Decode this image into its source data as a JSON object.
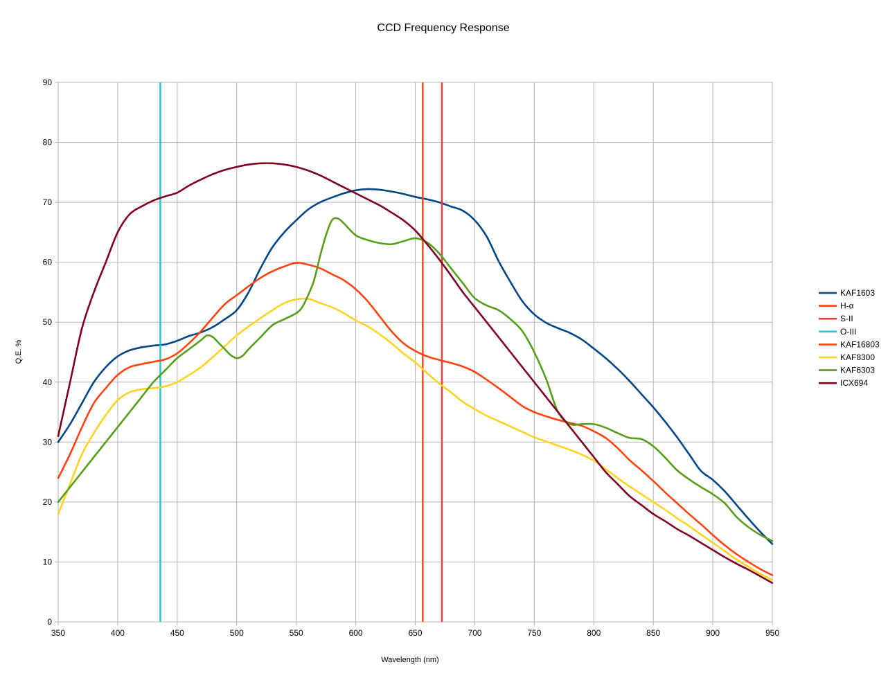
{
  "chart_data": {
    "type": "line",
    "title": "CCD Frequency Response",
    "xlabel": "Wavelength (nm)",
    "ylabel": "Q.E. %",
    "xlim": [
      350,
      950
    ],
    "ylim": [
      0,
      90
    ],
    "x_ticks": [
      350,
      400,
      450,
      500,
      550,
      600,
      650,
      700,
      750,
      800,
      850,
      900,
      950
    ],
    "y_ticks": [
      0,
      10,
      20,
      30,
      40,
      50,
      60,
      70,
      80,
      90
    ],
    "grid": true,
    "legend_position": "right",
    "series": [
      {
        "name": "KAF1603",
        "color": "#004586",
        "kind": "curve",
        "points": [
          [
            350,
            30
          ],
          [
            360,
            33
          ],
          [
            370,
            36.5
          ],
          [
            380,
            40
          ],
          [
            390,
            42.5
          ],
          [
            400,
            44.3
          ],
          [
            410,
            45.3
          ],
          [
            420,
            45.8
          ],
          [
            430,
            46.1
          ],
          [
            440,
            46.3
          ],
          [
            450,
            46.9
          ],
          [
            460,
            47.7
          ],
          [
            470,
            48.3
          ],
          [
            480,
            49.2
          ],
          [
            490,
            50.5
          ],
          [
            500,
            52
          ],
          [
            510,
            55
          ],
          [
            520,
            59
          ],
          [
            530,
            62.5
          ],
          [
            540,
            65
          ],
          [
            550,
            67
          ],
          [
            560,
            68.8
          ],
          [
            570,
            70
          ],
          [
            580,
            70.8
          ],
          [
            590,
            71.5
          ],
          [
            600,
            72
          ],
          [
            610,
            72.2
          ],
          [
            620,
            72.1
          ],
          [
            630,
            71.8
          ],
          [
            640,
            71.4
          ],
          [
            650,
            70.9
          ],
          [
            660,
            70.5
          ],
          [
            670,
            70
          ],
          [
            680,
            69.3
          ],
          [
            690,
            68.6
          ],
          [
            700,
            67
          ],
          [
            710,
            64.3
          ],
          [
            720,
            60.2
          ],
          [
            730,
            56.7
          ],
          [
            740,
            53.5
          ],
          [
            750,
            51.3
          ],
          [
            760,
            49.9
          ],
          [
            770,
            49
          ],
          [
            780,
            48.2
          ],
          [
            790,
            47.1
          ],
          [
            800,
            45.6
          ],
          [
            810,
            44
          ],
          [
            820,
            42.2
          ],
          [
            830,
            40.2
          ],
          [
            840,
            38
          ],
          [
            850,
            35.8
          ],
          [
            860,
            33.4
          ],
          [
            870,
            30.8
          ],
          [
            880,
            28
          ],
          [
            890,
            25.2
          ],
          [
            900,
            23.7
          ],
          [
            910,
            21.8
          ],
          [
            920,
            19.5
          ],
          [
            930,
            17.2
          ],
          [
            940,
            15
          ],
          [
            950,
            13
          ]
        ]
      },
      {
        "name": "H-α",
        "color": "#ff420e",
        "kind": "vline",
        "x": 656.3
      },
      {
        "name": "S-II",
        "color": "#ef3b36",
        "kind": "vline",
        "x": 672.4
      },
      {
        "name": "O-III",
        "color": "#1ec8cb",
        "kind": "vline",
        "x": 435.8
      },
      {
        "name": "KAF16803",
        "color": "#ff420e",
        "kind": "curve",
        "points": [
          [
            350,
            24
          ],
          [
            360,
            28
          ],
          [
            370,
            32.5
          ],
          [
            380,
            36.5
          ],
          [
            390,
            39
          ],
          [
            400,
            41.2
          ],
          [
            410,
            42.5
          ],
          [
            420,
            43
          ],
          [
            430,
            43.4
          ],
          [
            440,
            43.8
          ],
          [
            450,
            44.8
          ],
          [
            460,
            46.5
          ],
          [
            470,
            48.5
          ],
          [
            480,
            50.8
          ],
          [
            490,
            53
          ],
          [
            500,
            54.5
          ],
          [
            510,
            56
          ],
          [
            520,
            57.4
          ],
          [
            530,
            58.5
          ],
          [
            540,
            59.3
          ],
          [
            550,
            59.9
          ],
          [
            560,
            59.6
          ],
          [
            570,
            59
          ],
          [
            580,
            58
          ],
          [
            590,
            57
          ],
          [
            600,
            55.5
          ],
          [
            610,
            53.5
          ],
          [
            620,
            51
          ],
          [
            630,
            48.5
          ],
          [
            640,
            46.5
          ],
          [
            650,
            45.2
          ],
          [
            660,
            44.3
          ],
          [
            670,
            43.7
          ],
          [
            680,
            43.2
          ],
          [
            690,
            42.6
          ],
          [
            700,
            41.7
          ],
          [
            710,
            40.4
          ],
          [
            720,
            39
          ],
          [
            730,
            37.5
          ],
          [
            740,
            36
          ],
          [
            750,
            35
          ],
          [
            760,
            34.3
          ],
          [
            770,
            33.7
          ],
          [
            780,
            33.2
          ],
          [
            790,
            32.7
          ],
          [
            800,
            31.8
          ],
          [
            810,
            30.7
          ],
          [
            820,
            29
          ],
          [
            830,
            27
          ],
          [
            840,
            25.3
          ],
          [
            850,
            23.5
          ],
          [
            860,
            21.6
          ],
          [
            870,
            19.8
          ],
          [
            880,
            18
          ],
          [
            890,
            16.3
          ],
          [
            900,
            14.5
          ],
          [
            910,
            12.8
          ],
          [
            920,
            11.3
          ],
          [
            930,
            10
          ],
          [
            940,
            8.8
          ],
          [
            950,
            7.8
          ]
        ]
      },
      {
        "name": "KAF8300",
        "color": "#ffd320",
        "kind": "curve",
        "points": [
          [
            350,
            18
          ],
          [
            360,
            23
          ],
          [
            370,
            28
          ],
          [
            380,
            31.5
          ],
          [
            390,
            34.5
          ],
          [
            400,
            37
          ],
          [
            410,
            38.3
          ],
          [
            420,
            38.8
          ],
          [
            430,
            39
          ],
          [
            440,
            39.3
          ],
          [
            450,
            40
          ],
          [
            460,
            41.2
          ],
          [
            470,
            42.5
          ],
          [
            480,
            44.2
          ],
          [
            490,
            46
          ],
          [
            500,
            47.8
          ],
          [
            510,
            49.3
          ],
          [
            520,
            50.7
          ],
          [
            530,
            52
          ],
          [
            540,
            53.2
          ],
          [
            550,
            53.8
          ],
          [
            560,
            53.9
          ],
          [
            570,
            53.2
          ],
          [
            580,
            52.5
          ],
          [
            590,
            51.5
          ],
          [
            600,
            50.3
          ],
          [
            610,
            49.3
          ],
          [
            620,
            48
          ],
          [
            630,
            46.5
          ],
          [
            640,
            44.8
          ],
          [
            650,
            43.3
          ],
          [
            660,
            41.5
          ],
          [
            670,
            39.8
          ],
          [
            680,
            38.3
          ],
          [
            690,
            36.7
          ],
          [
            700,
            35.5
          ],
          [
            710,
            34.4
          ],
          [
            720,
            33.5
          ],
          [
            730,
            32.6
          ],
          [
            740,
            31.7
          ],
          [
            750,
            30.8
          ],
          [
            760,
            30.1
          ],
          [
            770,
            29.4
          ],
          [
            780,
            28.7
          ],
          [
            790,
            27.9
          ],
          [
            800,
            26.9
          ],
          [
            810,
            25.5
          ],
          [
            820,
            24
          ],
          [
            830,
            22.6
          ],
          [
            840,
            21.3
          ],
          [
            850,
            20
          ],
          [
            860,
            18.7
          ],
          [
            870,
            17.3
          ],
          [
            880,
            16
          ],
          [
            890,
            14.6
          ],
          [
            900,
            13.2
          ],
          [
            910,
            11.8
          ],
          [
            920,
            10.4
          ],
          [
            930,
            9.2
          ],
          [
            940,
            8
          ],
          [
            950,
            7
          ]
        ]
      },
      {
        "name": "KAF6303",
        "color": "#579d1c",
        "kind": "curve",
        "points": [
          [
            350,
            20
          ],
          [
            360,
            22.5
          ],
          [
            370,
            25
          ],
          [
            380,
            27.5
          ],
          [
            390,
            30
          ],
          [
            400,
            32.5
          ],
          [
            410,
            35
          ],
          [
            420,
            37.5
          ],
          [
            430,
            40
          ],
          [
            440,
            42
          ],
          [
            450,
            44
          ],
          [
            460,
            45.5
          ],
          [
            470,
            47
          ],
          [
            475,
            47.8
          ],
          [
            480,
            47.5
          ],
          [
            485,
            46.5
          ],
          [
            490,
            45.5
          ],
          [
            495,
            44.5
          ],
          [
            500,
            44
          ],
          [
            505,
            44.4
          ],
          [
            510,
            45.5
          ],
          [
            520,
            47.5
          ],
          [
            530,
            49.5
          ],
          [
            540,
            50.5
          ],
          [
            550,
            51.5
          ],
          [
            555,
            52.5
          ],
          [
            560,
            54.5
          ],
          [
            565,
            57
          ],
          [
            570,
            61
          ],
          [
            575,
            64.5
          ],
          [
            580,
            67
          ],
          [
            585,
            67.3
          ],
          [
            590,
            66.5
          ],
          [
            600,
            64.5
          ],
          [
            610,
            63.7
          ],
          [
            620,
            63.2
          ],
          [
            630,
            63
          ],
          [
            640,
            63.5
          ],
          [
            650,
            64
          ],
          [
            660,
            63.3
          ],
          [
            670,
            61.5
          ],
          [
            680,
            59
          ],
          [
            690,
            56.5
          ],
          [
            700,
            54
          ],
          [
            710,
            52.8
          ],
          [
            720,
            52
          ],
          [
            730,
            50.5
          ],
          [
            740,
            48.5
          ],
          [
            750,
            45
          ],
          [
            760,
            40.5
          ],
          [
            770,
            35
          ],
          [
            780,
            33
          ],
          [
            790,
            33
          ],
          [
            800,
            33
          ],
          [
            810,
            32.4
          ],
          [
            820,
            31.5
          ],
          [
            830,
            30.7
          ],
          [
            840,
            30.5
          ],
          [
            850,
            29.3
          ],
          [
            860,
            27.4
          ],
          [
            870,
            25.3
          ],
          [
            880,
            23.8
          ],
          [
            890,
            22.5
          ],
          [
            900,
            21.3
          ],
          [
            910,
            19.8
          ],
          [
            920,
            17.5
          ],
          [
            930,
            15.8
          ],
          [
            940,
            14.5
          ],
          [
            950,
            13.5
          ]
        ]
      },
      {
        "name": "ICX694",
        "color": "#7e0021",
        "kind": "curve",
        "points": [
          [
            350,
            31
          ],
          [
            360,
            40
          ],
          [
            370,
            49
          ],
          [
            380,
            55
          ],
          [
            390,
            60
          ],
          [
            400,
            65
          ],
          [
            410,
            68
          ],
          [
            420,
            69.3
          ],
          [
            430,
            70.3
          ],
          [
            440,
            71
          ],
          [
            450,
            71.6
          ],
          [
            460,
            72.8
          ],
          [
            470,
            73.8
          ],
          [
            480,
            74.7
          ],
          [
            490,
            75.4
          ],
          [
            500,
            75.9
          ],
          [
            510,
            76.3
          ],
          [
            520,
            76.5
          ],
          [
            530,
            76.5
          ],
          [
            540,
            76.3
          ],
          [
            550,
            75.9
          ],
          [
            560,
            75.3
          ],
          [
            570,
            74.5
          ],
          [
            580,
            73.5
          ],
          [
            590,
            72.5
          ],
          [
            600,
            71.5
          ],
          [
            610,
            70.5
          ],
          [
            620,
            69.5
          ],
          [
            630,
            68.3
          ],
          [
            640,
            67
          ],
          [
            650,
            65.3
          ],
          [
            660,
            63
          ],
          [
            670,
            60.5
          ],
          [
            680,
            57.8
          ],
          [
            690,
            55
          ],
          [
            700,
            52.5
          ],
          [
            710,
            50
          ],
          [
            720,
            47.5
          ],
          [
            730,
            45
          ],
          [
            740,
            42.5
          ],
          [
            750,
            40
          ],
          [
            760,
            37.5
          ],
          [
            770,
            35
          ],
          [
            780,
            32.5
          ],
          [
            790,
            30
          ],
          [
            800,
            27.5
          ],
          [
            810,
            25
          ],
          [
            820,
            23
          ],
          [
            830,
            21
          ],
          [
            840,
            19.5
          ],
          [
            850,
            18
          ],
          [
            860,
            16.8
          ],
          [
            870,
            15.5
          ],
          [
            880,
            14.4
          ],
          [
            890,
            13.2
          ],
          [
            900,
            12
          ],
          [
            910,
            10.8
          ],
          [
            920,
            9.7
          ],
          [
            930,
            8.7
          ],
          [
            940,
            7.6
          ],
          [
            950,
            6.5
          ]
        ]
      }
    ]
  }
}
